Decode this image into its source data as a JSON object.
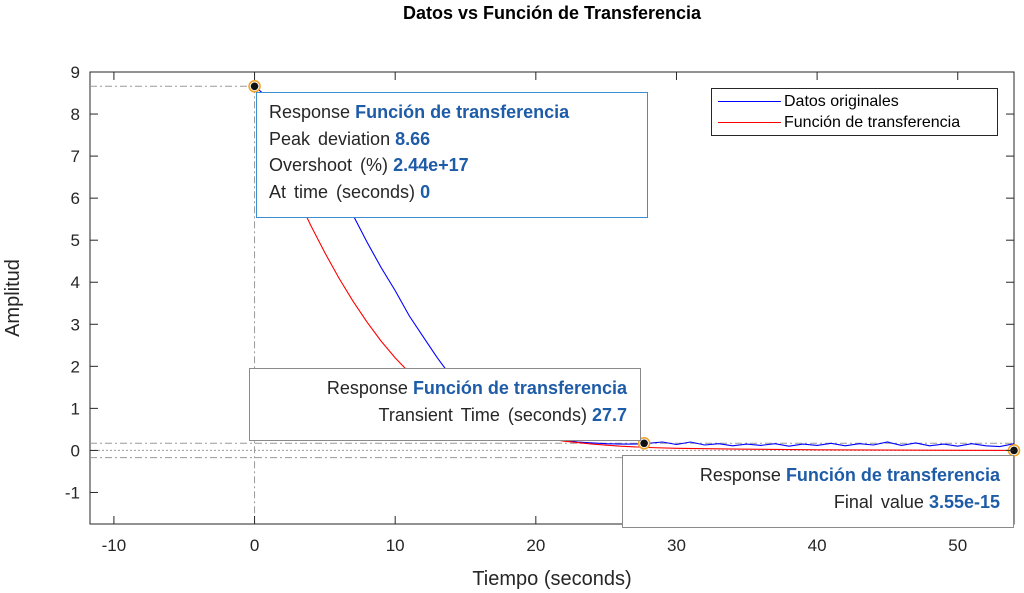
{
  "chart_data": {
    "type": "line",
    "title": "Datos vs Función de Transferencia",
    "xlabel": "Tiempo (seconds)",
    "ylabel": "Amplitud",
    "xlim": [
      -11.7,
      54
    ],
    "ylim": [
      -1.75,
      9
    ],
    "xticks": [
      -10,
      0,
      10,
      20,
      30,
      40,
      50
    ],
    "yticks": [
      -1,
      0,
      1,
      2,
      3,
      4,
      5,
      6,
      7,
      8,
      9
    ],
    "grid": false,
    "legend_position": "top-right",
    "series": [
      {
        "name": "Datos originales",
        "color": "#0000ff",
        "x": [
          0,
          2,
          4,
          5,
          6,
          7,
          8,
          9,
          10,
          11,
          12,
          13,
          14,
          15,
          16,
          17,
          18,
          19,
          20,
          21,
          22,
          23,
          24,
          25,
          26,
          27,
          28,
          29,
          30,
          31,
          32,
          33,
          34,
          35,
          36,
          37,
          38,
          39,
          40,
          41,
          42,
          43,
          44,
          45,
          46,
          47,
          48,
          49,
          50,
          51,
          52,
          53,
          54
        ],
        "y": [
          8.66,
          8.1,
          7.4,
          7.0,
          6.25,
          5.6,
          4.95,
          4.35,
          3.8,
          3.2,
          2.7,
          2.2,
          1.75,
          1.4,
          1.1,
          0.85,
          0.65,
          0.5,
          0.38,
          0.3,
          0.24,
          0.2,
          0.18,
          0.16,
          0.15,
          0.15,
          0.17,
          0.2,
          0.14,
          0.2,
          0.13,
          0.16,
          0.11,
          0.15,
          0.12,
          0.16,
          0.1,
          0.15,
          0.12,
          0.17,
          0.11,
          0.16,
          0.13,
          0.2,
          0.12,
          0.18,
          0.11,
          0.15,
          0.1,
          0.16,
          0.11,
          0.09,
          0.16
        ]
      },
      {
        "name": "Función de transferencia",
        "color": "#ff0000",
        "x": [
          0,
          1,
          2,
          3,
          4,
          5,
          6,
          7,
          8,
          9,
          10,
          11,
          12,
          13,
          14,
          15,
          16,
          17,
          18,
          20,
          22,
          24,
          26,
          28,
          30,
          35,
          40,
          45,
          50,
          54
        ],
        "y": [
          8.66,
          7.7,
          6.85,
          6.05,
          5.35,
          4.7,
          4.1,
          3.55,
          3.05,
          2.6,
          2.2,
          1.85,
          1.55,
          1.3,
          1.08,
          0.9,
          0.74,
          0.6,
          0.49,
          0.33,
          0.22,
          0.15,
          0.1,
          0.07,
          0.05,
          0.03,
          0.015,
          0.008,
          0.004,
          0.0
        ]
      }
    ],
    "markers": [
      {
        "x": 0,
        "y": 8.66
      },
      {
        "x": 27.7,
        "y": 0.17
      },
      {
        "x": 54,
        "y": 0.0
      }
    ],
    "reference_lines": {
      "peak_y": 8.66,
      "peak_x": 0,
      "settling_band": [
        0.17,
        -0.17
      ],
      "transient_x": 27.7,
      "final_value": 0.0
    }
  },
  "datatips": {
    "peak": {
      "response_label": "Response",
      "response_value": "Función de transferencia",
      "rows": [
        {
          "label": "Peak deviation",
          "value": "8.66"
        },
        {
          "label": "Overshoot (%)",
          "value": "2.44e+17"
        },
        {
          "label": "At time (seconds)",
          "value": "0"
        }
      ]
    },
    "transient": {
      "response_label": "Response",
      "response_value": "Función de transferencia",
      "rows": [
        {
          "label": "Transient Time (seconds)",
          "value": "27.7"
        }
      ]
    },
    "final": {
      "response_label": "Response",
      "response_value": "Función de transferencia",
      "rows": [
        {
          "label": "Final value",
          "value": "3.55e-15"
        }
      ]
    }
  }
}
